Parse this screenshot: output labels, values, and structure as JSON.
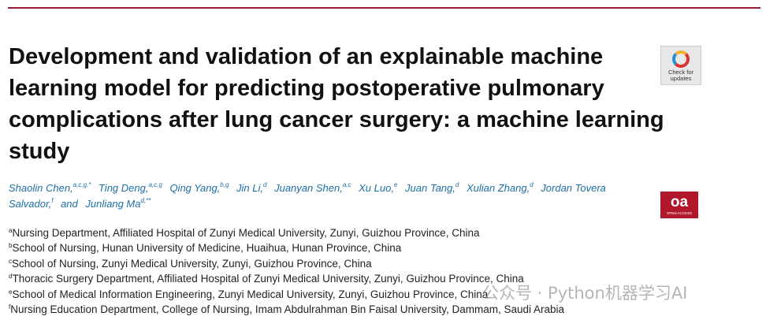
{
  "header": {
    "title_lines": [
      "Development and validation of an explainable machine",
      "learning model for predicting postoperative pulmonary",
      "complications after lung cancer surgery: a machine learning",
      "study"
    ],
    "authors": [
      {
        "name": "Shaolin Chen,",
        "sup": "a,c,g,*"
      },
      {
        "name": "Ting Deng,",
        "sup": "a,c,g"
      },
      {
        "name": "Qing Yang,",
        "sup": "b,g"
      },
      {
        "name": "Jin Li,",
        "sup": "d"
      },
      {
        "name": "Juanyan Shen,",
        "sup": "a,c"
      },
      {
        "name": "Xu Luo,",
        "sup": "e"
      },
      {
        "name": "Juan Tang,",
        "sup": "d"
      },
      {
        "name": "Xulian Zhang,",
        "sup": "d"
      },
      {
        "name": "Jordan Tovera Salvador,",
        "sup": "f"
      },
      {
        "name": "and",
        "sup": null
      },
      {
        "name": "Junliang Ma",
        "sup": "d,**"
      }
    ],
    "affiliations": [
      {
        "sup": "a",
        "text": "Nursing Department, Affiliated Hospital of Zunyi Medical University, Zunyi, Guizhou Province, China"
      },
      {
        "sup": "b",
        "text": "School of Nursing, Hunan University of Medicine, Huaihua, Hunan Province, China"
      },
      {
        "sup": "c",
        "text": "School of Nursing, Zunyi Medical University, Zunyi, Guizhou Province, China"
      },
      {
        "sup": "d",
        "text": "Thoracic Surgery Department, Affiliated Hospital of Zunyi Medical University, Zunyi, Guizhou Province, China"
      },
      {
        "sup": "e",
        "text": "School of Medical Information Engineering, Zunyi Medical University, Zunyi, Guizhou Province, China"
      },
      {
        "sup": "f",
        "text": "Nursing Education Department, College of Nursing, Imam Abdulrahman Bin Faisal University, Dammam, Saudi Arabia"
      }
    ],
    "badge_check": [
      "Check for",
      "updates"
    ],
    "badge_oa": [
      "oa",
      "OPEN ACCESS"
    ]
  },
  "watermark": "公众号 · Python机器学习AI"
}
